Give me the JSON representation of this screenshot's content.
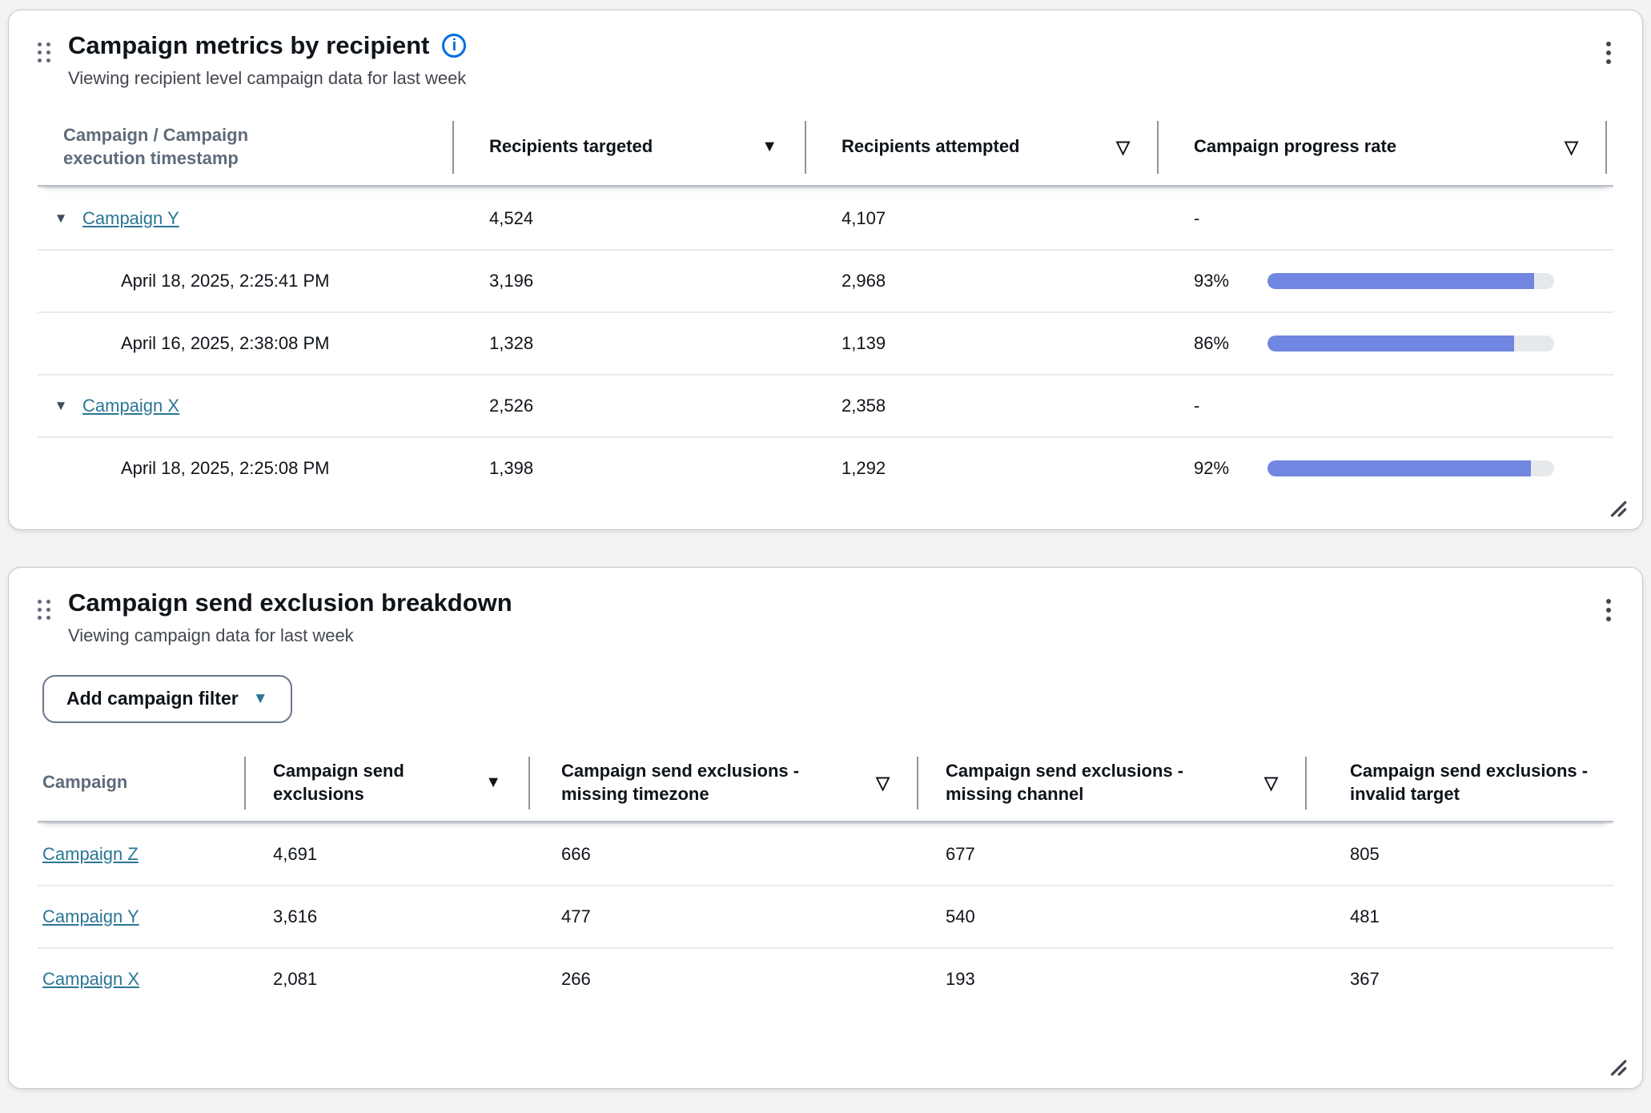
{
  "colors": {
    "page_background": "#f2f3f3",
    "accent_blue": "#006ce0",
    "link": "#2b7696",
    "progress_fill": "#7086e0",
    "progress_track": "#e6e9ec"
  },
  "icons": {
    "sort_desc": "▼",
    "sortable": "▽",
    "expander": "▼",
    "dropdown_caret": "▼",
    "info": "i"
  },
  "card1": {
    "title": "Campaign metrics by recipient",
    "subtitle": "Viewing recipient level campaign data for last week",
    "columns": {
      "c1": "Campaign / Campaign execution timestamp",
      "c2": "Recipients targeted",
      "c3": "Recipients attempted",
      "c4": "Campaign progress rate"
    },
    "rows": [
      {
        "type": "campaign",
        "label": "Campaign Y",
        "targeted": "4,524",
        "attempted": "4,107",
        "progress_label": "-"
      },
      {
        "type": "execution",
        "label": "April 18, 2025, 2:25:41 PM",
        "targeted": "3,196",
        "attempted": "2,968",
        "progress_label": "93%",
        "progress_pct": 93
      },
      {
        "type": "execution",
        "label": "April 16, 2025, 2:38:08 PM",
        "targeted": "1,328",
        "attempted": "1,139",
        "progress_label": "86%",
        "progress_pct": 86
      },
      {
        "type": "campaign",
        "label": "Campaign X",
        "targeted": "2,526",
        "attempted": "2,358",
        "progress_label": "-"
      },
      {
        "type": "execution",
        "label": "April 18, 2025, 2:25:08 PM",
        "targeted": "1,398",
        "attempted": "1,292",
        "progress_label": "92%",
        "progress_pct": 92
      }
    ]
  },
  "card2": {
    "title": "Campaign send exclusion breakdown",
    "subtitle": "Viewing campaign data for last week",
    "filter_button_label": "Add campaign filter",
    "columns": {
      "c1": "Campaign",
      "c2": "Campaign send exclusions",
      "c3": "Campaign send exclusions - missing timezone",
      "c4": "Campaign send exclusions - missing channel",
      "c5": "Campaign send exclusions - invalid target"
    },
    "rows": [
      {
        "campaign": "Campaign Z",
        "exclusions": "4,691",
        "missing_timezone": "666",
        "missing_channel": "677",
        "invalid_target": "805"
      },
      {
        "campaign": "Campaign Y",
        "exclusions": "3,616",
        "missing_timezone": "477",
        "missing_channel": "540",
        "invalid_target": "481"
      },
      {
        "campaign": "Campaign X",
        "exclusions": "2,081",
        "missing_timezone": "266",
        "missing_channel": "193",
        "invalid_target": "367"
      }
    ]
  }
}
